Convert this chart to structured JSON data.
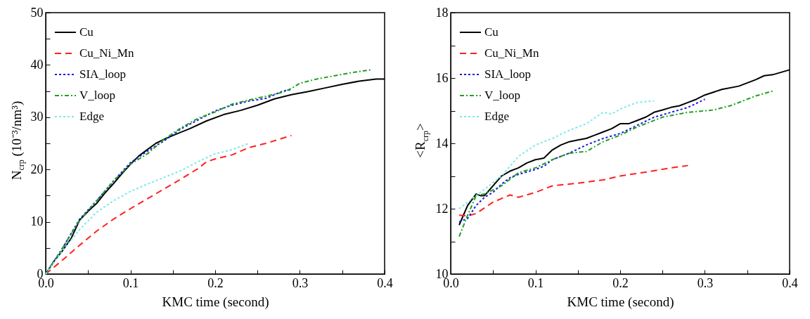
{
  "chart_data": [
    {
      "type": "line",
      "xlabel": "KMC time (second)",
      "ylabel": "N$_{crp}$ (10⁻³/nm³)",
      "legend": "top left",
      "xlim": [
        0,
        0.4
      ],
      "ylim": [
        0,
        50
      ],
      "xticks": [
        {
          "value": 0,
          "label": "0.0"
        },
        {
          "value": 0.05,
          "label": null
        },
        {
          "value": 0.1,
          "label": "0.1"
        },
        {
          "value": 0.15,
          "label": null
        },
        {
          "value": 0.2,
          "label": "0.2"
        },
        {
          "value": 0.25,
          "label": null
        },
        {
          "value": 0.3,
          "label": "0.3"
        },
        {
          "value": 0.35,
          "label": null
        },
        {
          "value": 0.4,
          "label": "0.4"
        }
      ],
      "yticks": [
        0,
        {
          "value": 5,
          "label": null
        },
        10,
        {
          "value": 15,
          "label": null
        },
        20,
        {
          "value": 25,
          "label": null
        },
        30,
        {
          "value": 35,
          "label": null
        },
        40,
        {
          "value": 45,
          "label": null
        },
        50
      ],
      "series": [
        {
          "name": "Cu",
          "color": "#000000",
          "line_style": "solid",
          "x": [
            0,
            0.01,
            0.02,
            0.03,
            0.04,
            0.05,
            0.06,
            0.07,
            0.08,
            0.09,
            0.1,
            0.11,
            0.12,
            0.13,
            0.14,
            0.15,
            0.17,
            0.19,
            0.21,
            0.23,
            0.25,
            0.27,
            0.29,
            0.31,
            0.33,
            0.35,
            0.37,
            0.39,
            0.4
          ],
          "values": [
            0,
            2.5,
            4.5,
            6.8,
            10.3,
            12,
            13.5,
            15.5,
            17.3,
            19.2,
            21,
            22.6,
            23.8,
            25,
            25.8,
            26.5,
            27.8,
            29.3,
            30.5,
            31.3,
            32.3,
            33.5,
            34.3,
            34.9,
            35.6,
            36.3,
            36.9,
            37.3,
            37.3
          ]
        },
        {
          "name": "Cu_Ni_Mn",
          "color": "#ff2020",
          "line_style": "dashed",
          "x": [
            0,
            0.02,
            0.04,
            0.06,
            0.08,
            0.1,
            0.12,
            0.14,
            0.16,
            0.18,
            0.19,
            0.2,
            0.22,
            0.24,
            0.26,
            0.28,
            0.29
          ],
          "values": [
            0,
            2.7,
            5.5,
            8.2,
            10.5,
            12.5,
            14.4,
            16.3,
            18.2,
            20.2,
            21.5,
            22,
            22.8,
            24.2,
            25,
            26,
            26.5
          ]
        },
        {
          "name": "SIA_loop",
          "color": "#1a1adc",
          "line_style": "dotted",
          "x": [
            0,
            0.02,
            0.04,
            0.06,
            0.08,
            0.1,
            0.12,
            0.14,
            0.16,
            0.18,
            0.2,
            0.22,
            0.24,
            0.26,
            0.28,
            0.29
          ],
          "values": [
            0,
            5,
            10.5,
            14,
            17.8,
            21.3,
            23.5,
            25.5,
            27.8,
            29.5,
            31.2,
            32.3,
            33.1,
            33.6,
            35,
            35.3
          ]
        },
        {
          "name": "V_loop",
          "color": "#20a020",
          "line_style": "dashdot",
          "x": [
            0,
            0.02,
            0.04,
            0.06,
            0.08,
            0.1,
            0.12,
            0.14,
            0.16,
            0.18,
            0.2,
            0.22,
            0.24,
            0.26,
            0.28,
            0.29,
            0.3,
            0.32,
            0.34,
            0.36,
            0.385
          ],
          "values": [
            0,
            5,
            10.3,
            14,
            17.8,
            21,
            23,
            25.8,
            28,
            29.8,
            31,
            32.5,
            33.3,
            34,
            34.8,
            35.5,
            36.5,
            37.3,
            37.9,
            38.5,
            39.1
          ]
        },
        {
          "name": "Edge",
          "color": "#7fe8e8",
          "line_style": "dotted",
          "x": [
            0,
            0.02,
            0.04,
            0.06,
            0.08,
            0.1,
            0.12,
            0.14,
            0.16,
            0.18,
            0.2,
            0.22,
            0.24
          ],
          "values": [
            0,
            4.5,
            8.5,
            11.8,
            14,
            15.8,
            17.2,
            18.5,
            19.8,
            21.5,
            23,
            23.8,
            25
          ]
        }
      ]
    },
    {
      "type": "line",
      "xlabel": "KMC time (second)",
      "ylabel": "<R$_{crp}$>",
      "legend": "top left",
      "xlim": [
        0,
        0.4
      ],
      "ylim": [
        10,
        18
      ],
      "xticks": [
        {
          "value": 0,
          "label": "0.0"
        },
        {
          "value": 0.05,
          "label": null
        },
        {
          "value": 0.1,
          "label": "0.1"
        },
        {
          "value": 0.15,
          "label": null
        },
        {
          "value": 0.2,
          "label": "0.2"
        },
        {
          "value": 0.25,
          "label": null
        },
        {
          "value": 0.3,
          "label": "0.3"
        },
        {
          "value": 0.35,
          "label": null
        },
        {
          "value": 0.4,
          "label": "0.4"
        }
      ],
      "yticks": [
        10,
        {
          "value": 11,
          "label": null
        },
        12,
        {
          "value": 13,
          "label": null
        },
        14,
        {
          "value": 15,
          "label": null
        },
        16,
        {
          "value": 17,
          "label": null
        },
        18
      ],
      "series": [
        {
          "name": "Cu",
          "color": "#000000",
          "line_style": "solid",
          "x": [
            0.01,
            0.02,
            0.03,
            0.035,
            0.04,
            0.05,
            0.06,
            0.07,
            0.08,
            0.09,
            0.1,
            0.11,
            0.12,
            0.13,
            0.14,
            0.15,
            0.16,
            0.17,
            0.18,
            0.19,
            0.2,
            0.21,
            0.22,
            0.23,
            0.24,
            0.25,
            0.26,
            0.27,
            0.28,
            0.29,
            0.3,
            0.32,
            0.34,
            0.36,
            0.37,
            0.38,
            0.4
          ],
          "values": [
            11.5,
            12.1,
            12.45,
            12.4,
            12.4,
            12.7,
            13,
            13.15,
            13.25,
            13.4,
            13.5,
            13.55,
            13.8,
            13.95,
            14.05,
            14.1,
            14.15,
            14.25,
            14.35,
            14.45,
            14.6,
            14.6,
            14.7,
            14.8,
            14.95,
            15.02,
            15.1,
            15.15,
            15.25,
            15.35,
            15.48,
            15.65,
            15.75,
            15.95,
            16.07,
            16.1,
            16.25
          ]
        },
        {
          "name": "Cu_Ni_Mn",
          "color": "#ff2020",
          "line_style": "dashed",
          "x": [
            0.01,
            0.02,
            0.03,
            0.05,
            0.07,
            0.08,
            0.1,
            0.12,
            0.15,
            0.18,
            0.2,
            0.23,
            0.26,
            0.28
          ],
          "values": [
            11.8,
            11.78,
            11.85,
            12.2,
            12.42,
            12.35,
            12.5,
            12.7,
            12.78,
            12.88,
            13,
            13.12,
            13.25,
            13.32
          ]
        },
        {
          "name": "SIA_loop",
          "color": "#1a1adc",
          "line_style": "dotted",
          "x": [
            0.01,
            0.02,
            0.03,
            0.04,
            0.05,
            0.06,
            0.07,
            0.08,
            0.1,
            0.11,
            0.12,
            0.14,
            0.16,
            0.18,
            0.2,
            0.22,
            0.24,
            0.26,
            0.28,
            0.3
          ],
          "values": [
            11.6,
            11.7,
            12.1,
            12.35,
            12.5,
            12.75,
            12.95,
            13.05,
            13.2,
            13.3,
            13.5,
            13.7,
            13.95,
            14.15,
            14.3,
            14.55,
            14.8,
            14.95,
            15.1,
            15.35
          ]
        },
        {
          "name": "V_loop",
          "color": "#20a020",
          "line_style": "dashdot",
          "x": [
            0.01,
            0.02,
            0.03,
            0.04,
            0.06,
            0.08,
            0.1,
            0.12,
            0.14,
            0.16,
            0.18,
            0.2,
            0.22,
            0.25,
            0.28,
            0.31,
            0.33,
            0.36,
            0.38
          ],
          "values": [
            11.15,
            11.8,
            12.4,
            12.45,
            12.7,
            13.1,
            13.25,
            13.5,
            13.7,
            13.75,
            14.05,
            14.25,
            14.5,
            14.8,
            14.95,
            15.02,
            15.15,
            15.45,
            15.6
          ]
        },
        {
          "name": "Edge",
          "color": "#7fe8e8",
          "line_style": "dotted",
          "x": [
            0.01,
            0.02,
            0.04,
            0.06,
            0.08,
            0.1,
            0.12,
            0.14,
            0.16,
            0.18,
            0.19,
            0.2,
            0.22,
            0.24
          ],
          "values": [
            12,
            12.2,
            12.6,
            13,
            13.6,
            13.95,
            14.15,
            14.4,
            14.6,
            14.95,
            14.9,
            15.05,
            15.25,
            15.3
          ]
        }
      ]
    }
  ]
}
